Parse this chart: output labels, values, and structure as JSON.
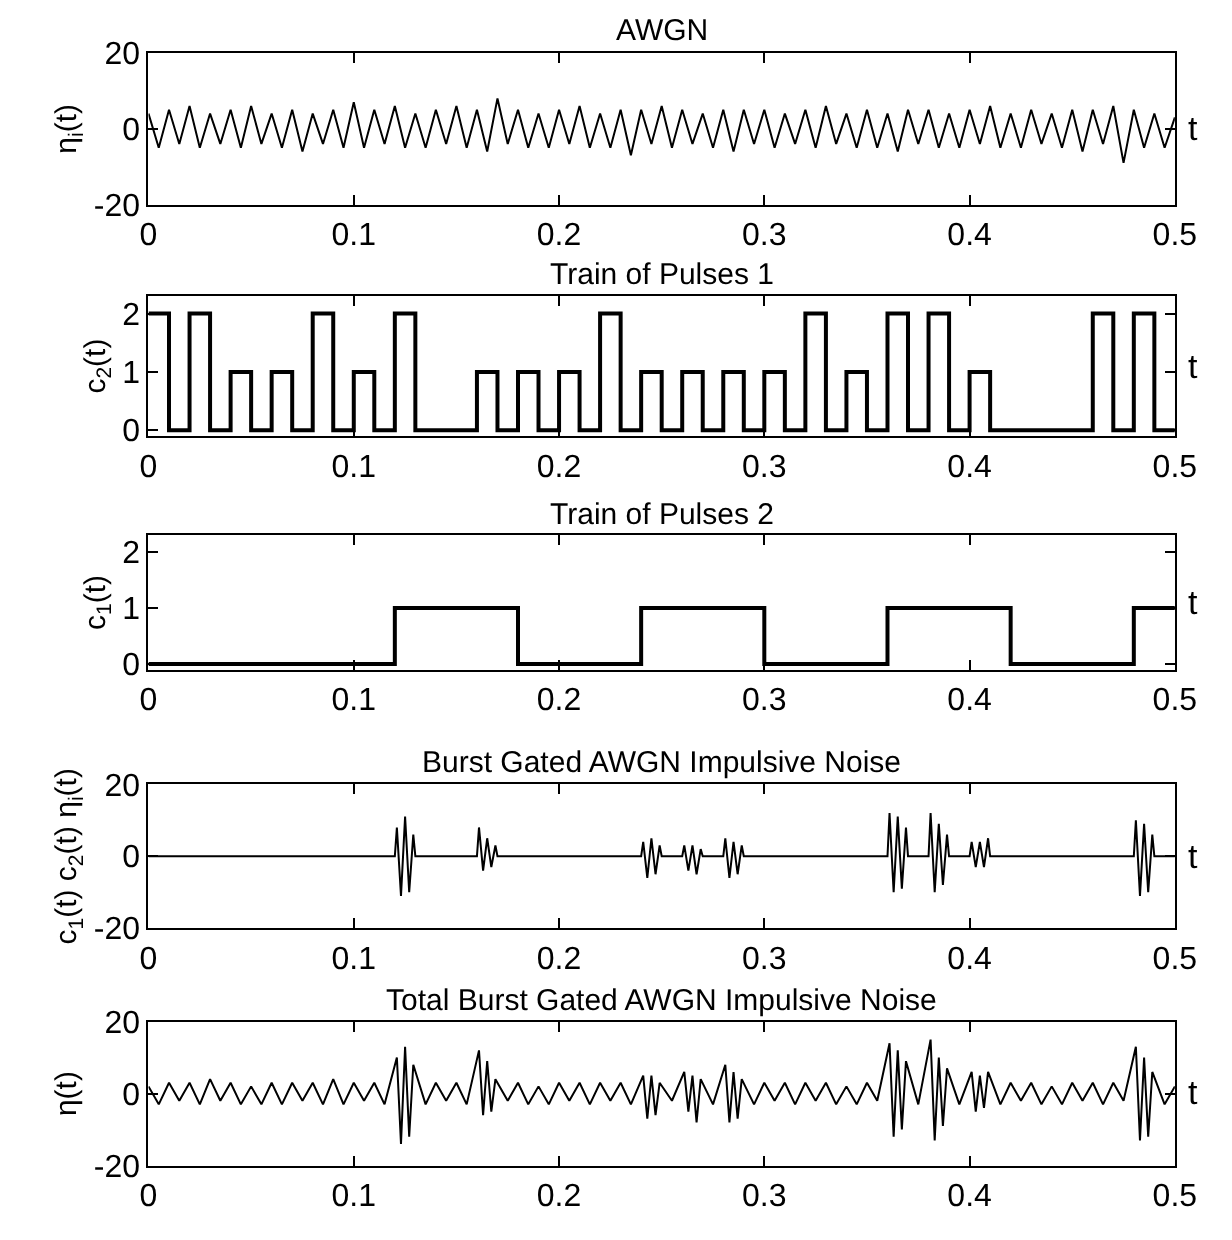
{
  "chart_data": [
    {
      "type": "line",
      "title": "AWGN",
      "xlabel": "t",
      "ylabel": "η$_{i}$(t)",
      "xlim": [
        0,
        0.5
      ],
      "xticks": [
        0,
        0.1,
        0.2,
        0.3,
        0.4,
        0.5
      ],
      "ylim": [
        -20,
        20
      ],
      "yticks": [
        -20,
        0,
        20
      ],
      "x": [
        0,
        0.005,
        0.01,
        0.015,
        0.02,
        0.025,
        0.03,
        0.035,
        0.04,
        0.045,
        0.05,
        0.055,
        0.06,
        0.065,
        0.07,
        0.075,
        0.08,
        0.085,
        0.09,
        0.095,
        0.1,
        0.105,
        0.11,
        0.115,
        0.12,
        0.125,
        0.13,
        0.135,
        0.14,
        0.145,
        0.15,
        0.155,
        0.16,
        0.165,
        0.17,
        0.175,
        0.18,
        0.185,
        0.19,
        0.195,
        0.2,
        0.205,
        0.21,
        0.215,
        0.22,
        0.225,
        0.23,
        0.235,
        0.24,
        0.245,
        0.25,
        0.255,
        0.26,
        0.265,
        0.27,
        0.275,
        0.28,
        0.285,
        0.29,
        0.295,
        0.3,
        0.305,
        0.31,
        0.315,
        0.32,
        0.325,
        0.33,
        0.335,
        0.34,
        0.345,
        0.35,
        0.355,
        0.36,
        0.365,
        0.37,
        0.375,
        0.38,
        0.385,
        0.39,
        0.395,
        0.4,
        0.405,
        0.41,
        0.415,
        0.42,
        0.425,
        0.43,
        0.435,
        0.44,
        0.445,
        0.45,
        0.455,
        0.46,
        0.465,
        0.47,
        0.475,
        0.48,
        0.485,
        0.49,
        0.495,
        0.5
      ],
      "series": [
        {
          "color": "#000000",
          "values": [
            4,
            -5,
            5,
            -4,
            6,
            -5,
            4,
            -4,
            5,
            -5,
            6,
            -4,
            4,
            -5,
            5,
            -6,
            4,
            -4,
            5,
            -5,
            7,
            -5,
            5,
            -4,
            6,
            -5,
            4,
            -5,
            5,
            -4,
            6,
            -5,
            5,
            -6,
            8,
            -4,
            5,
            -5,
            4,
            -5,
            5,
            -4,
            6,
            -5,
            4,
            -5,
            5,
            -7,
            5,
            -4,
            6,
            -5,
            5,
            -4,
            4,
            -5,
            5,
            -6,
            5,
            -4,
            5,
            -5,
            4,
            -4,
            5,
            -5,
            6,
            -4,
            4,
            -5,
            5,
            -5,
            4,
            -6,
            5,
            -4,
            5,
            -5,
            4,
            -5,
            5,
            -4,
            6,
            -5,
            4,
            -5,
            5,
            -4,
            4,
            -5,
            5,
            -6,
            5,
            -4,
            6,
            -9,
            5,
            -5,
            4,
            -5,
            3
          ]
        }
      ]
    },
    {
      "type": "step",
      "title": "Train of Pulses 1",
      "xlabel": "t",
      "ylabel": "c$_{2}$(t)",
      "xlim": [
        0,
        0.5
      ],
      "xticks": [
        0,
        0.1,
        0.2,
        0.3,
        0.4,
        0.5
      ],
      "ylim": [
        -0.1,
        2.3
      ],
      "yticks": [
        0,
        1,
        2
      ],
      "x": [
        0,
        0.01,
        0.02,
        0.03,
        0.04,
        0.05,
        0.06,
        0.07,
        0.08,
        0.09,
        0.1,
        0.11,
        0.12,
        0.13,
        0.16,
        0.17,
        0.18,
        0.19,
        0.2,
        0.21,
        0.22,
        0.23,
        0.24,
        0.25,
        0.26,
        0.27,
        0.28,
        0.29,
        0.3,
        0.31,
        0.32,
        0.33,
        0.34,
        0.35,
        0.36,
        0.37,
        0.38,
        0.39,
        0.4,
        0.41,
        0.46,
        0.47,
        0.48,
        0.49,
        0.5
      ],
      "series": [
        {
          "color": "#000000",
          "values": [
            2,
            0,
            2,
            0,
            1,
            0,
            1,
            0,
            2,
            0,
            1,
            0,
            2,
            0,
            1,
            0,
            1,
            0,
            1,
            0,
            2,
            0,
            1,
            0,
            1,
            0,
            1,
            0,
            1,
            0,
            2,
            0,
            1,
            0,
            2,
            0,
            2,
            0,
            1,
            0,
            2,
            0,
            2,
            0,
            0
          ]
        }
      ]
    },
    {
      "type": "step",
      "title": "Train of Pulses 2",
      "xlabel": "t",
      "ylabel": "c$_{1}$(t)",
      "xlim": [
        0,
        0.5
      ],
      "xticks": [
        0,
        0.1,
        0.2,
        0.3,
        0.4,
        0.5
      ],
      "ylim": [
        -0.1,
        2.3
      ],
      "yticks": [
        0,
        1,
        2
      ],
      "x": [
        0,
        0.12,
        0.18,
        0.24,
        0.3,
        0.36,
        0.42,
        0.48,
        0.5
      ],
      "series": [
        {
          "color": "#000000",
          "values": [
            0,
            1,
            0,
            1,
            0,
            1,
            0,
            1,
            1
          ]
        }
      ]
    },
    {
      "type": "line",
      "title": "Burst Gated AWGN Impulsive Noise",
      "xlabel": "t",
      "ylabel": "c$_{1}$(t) c$_{2}$(t) η$_{i}$(t)",
      "xlim": [
        0,
        0.5
      ],
      "xticks": [
        0,
        0.1,
        0.2,
        0.3,
        0.4,
        0.5
      ],
      "ylim": [
        -20,
        20
      ],
      "yticks": [
        -20,
        0,
        20
      ],
      "x": [
        0,
        0.12,
        0.121,
        0.123,
        0.125,
        0.127,
        0.129,
        0.13,
        0.16,
        0.161,
        0.163,
        0.165,
        0.167,
        0.169,
        0.17,
        0.24,
        0.241,
        0.243,
        0.245,
        0.247,
        0.249,
        0.25,
        0.26,
        0.261,
        0.263,
        0.265,
        0.267,
        0.269,
        0.27,
        0.28,
        0.281,
        0.283,
        0.285,
        0.287,
        0.289,
        0.29,
        0.36,
        0.361,
        0.363,
        0.365,
        0.367,
        0.369,
        0.37,
        0.38,
        0.381,
        0.383,
        0.385,
        0.387,
        0.389,
        0.39,
        0.4,
        0.401,
        0.403,
        0.405,
        0.407,
        0.409,
        0.41,
        0.48,
        0.481,
        0.483,
        0.485,
        0.487,
        0.489,
        0.49,
        0.5
      ],
      "series": [
        {
          "color": "#000000",
          "values": [
            0,
            0,
            8,
            -11,
            11,
            -10,
            6,
            0,
            0,
            8,
            -4,
            5,
            -3,
            3,
            0,
            0,
            4,
            -6,
            5,
            -5,
            3,
            0,
            0,
            3,
            -4,
            3,
            -5,
            2,
            0,
            0,
            5,
            -6,
            4,
            -5,
            3,
            0,
            0,
            12,
            -10,
            11,
            -9,
            8,
            0,
            0,
            12,
            -10,
            9,
            -8,
            6,
            0,
            0,
            4,
            -3,
            4,
            -3,
            5,
            0,
            0,
            10,
            -11,
            9,
            -10,
            6,
            0,
            0
          ]
        }
      ]
    },
    {
      "type": "line",
      "title": "Total Burst Gated AWGN Impulsive Noise",
      "xlabel": "t",
      "ylabel": "η(t)",
      "xlim": [
        0,
        0.5
      ],
      "xticks": [
        0,
        0.1,
        0.2,
        0.3,
        0.4,
        0.5
      ],
      "ylim": [
        -20,
        20
      ],
      "yticks": [
        -20,
        0,
        20
      ],
      "x": [
        0,
        0.005,
        0.01,
        0.015,
        0.02,
        0.025,
        0.03,
        0.035,
        0.04,
        0.045,
        0.05,
        0.055,
        0.06,
        0.065,
        0.07,
        0.075,
        0.08,
        0.085,
        0.09,
        0.095,
        0.1,
        0.105,
        0.11,
        0.115,
        0.121,
        0.123,
        0.125,
        0.127,
        0.129,
        0.135,
        0.14,
        0.145,
        0.15,
        0.155,
        0.161,
        0.163,
        0.165,
        0.167,
        0.169,
        0.175,
        0.18,
        0.185,
        0.19,
        0.195,
        0.2,
        0.205,
        0.21,
        0.215,
        0.22,
        0.225,
        0.23,
        0.235,
        0.241,
        0.243,
        0.245,
        0.247,
        0.249,
        0.255,
        0.261,
        0.263,
        0.265,
        0.267,
        0.269,
        0.275,
        0.281,
        0.283,
        0.285,
        0.287,
        0.289,
        0.295,
        0.3,
        0.305,
        0.31,
        0.315,
        0.32,
        0.325,
        0.33,
        0.335,
        0.34,
        0.345,
        0.35,
        0.355,
        0.361,
        0.363,
        0.365,
        0.367,
        0.369,
        0.375,
        0.381,
        0.383,
        0.385,
        0.387,
        0.389,
        0.395,
        0.401,
        0.403,
        0.405,
        0.407,
        0.409,
        0.415,
        0.42,
        0.425,
        0.43,
        0.435,
        0.44,
        0.445,
        0.45,
        0.455,
        0.46,
        0.465,
        0.47,
        0.475,
        0.481,
        0.483,
        0.485,
        0.487,
        0.489,
        0.495,
        0.5
      ],
      "series": [
        {
          "color": "#000000",
          "values": [
            2,
            -3,
            3,
            -2,
            3,
            -3,
            4,
            -2,
            3,
            -3,
            2,
            -3,
            3,
            -3,
            3,
            -2,
            3,
            -3,
            4,
            -3,
            3,
            -2,
            3,
            -3,
            10,
            -14,
            13,
            -12,
            8,
            -3,
            3,
            -2,
            3,
            -3,
            12,
            -6,
            9,
            -5,
            4,
            -2,
            3,
            -3,
            2,
            -3,
            3,
            -2,
            3,
            -3,
            3,
            -2,
            3,
            -3,
            5,
            -7,
            5,
            -6,
            3,
            -2,
            6,
            -5,
            5,
            -8,
            4,
            -3,
            8,
            -8,
            6,
            -7,
            4,
            -3,
            3,
            -2,
            3,
            -3,
            3,
            -2,
            3,
            -3,
            2,
            -3,
            3,
            -2,
            14,
            -12,
            12,
            -10,
            9,
            -3,
            15,
            -13,
            10,
            -9,
            7,
            -3,
            6,
            -5,
            5,
            -4,
            6,
            -3,
            3,
            -2,
            3,
            -3,
            2,
            -3,
            3,
            -2,
            3,
            -3,
            3,
            -2,
            13,
            -13,
            10,
            -12,
            6,
            -3,
            2
          ]
        }
      ]
    }
  ]
}
